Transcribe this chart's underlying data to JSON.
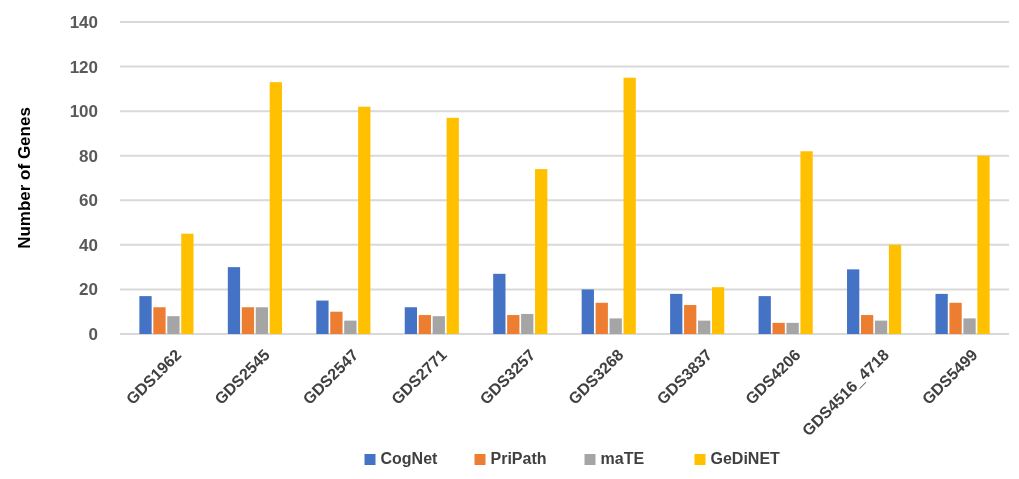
{
  "chart_data": {
    "type": "bar",
    "ylabel": "Number of Genes",
    "categories": [
      "GDS1962",
      "GDS2545",
      "GDS2547",
      "GDS2771",
      "GDS3257",
      "GDS3268",
      "GDS3837",
      "GDS4206",
      "GDS4516_4718",
      "GDS5499"
    ],
    "series": [
      {
        "name": "CogNet",
        "color": "#4472c4",
        "values": [
          17,
          30,
          15,
          12,
          27,
          20,
          18,
          17,
          29,
          18
        ]
      },
      {
        "name": "PriPath",
        "color": "#ed7d31",
        "values": [
          12,
          12,
          10,
          8.5,
          8.5,
          14,
          13,
          5,
          8.5,
          14
        ]
      },
      {
        "name": "maTE",
        "color": "#a5a5a5",
        "values": [
          8,
          12,
          6,
          8,
          9,
          7,
          6,
          5,
          6,
          7
        ]
      },
      {
        "name": "GeDiNET",
        "color": "#ffc000",
        "values": [
          45,
          113,
          102,
          97,
          74,
          115,
          21,
          82,
          40,
          80
        ]
      }
    ],
    "ylim": [
      0,
      140
    ],
    "yticks": [
      0,
      20,
      40,
      60,
      80,
      100,
      120,
      140
    ],
    "grid": "y",
    "legend": "bottom"
  }
}
